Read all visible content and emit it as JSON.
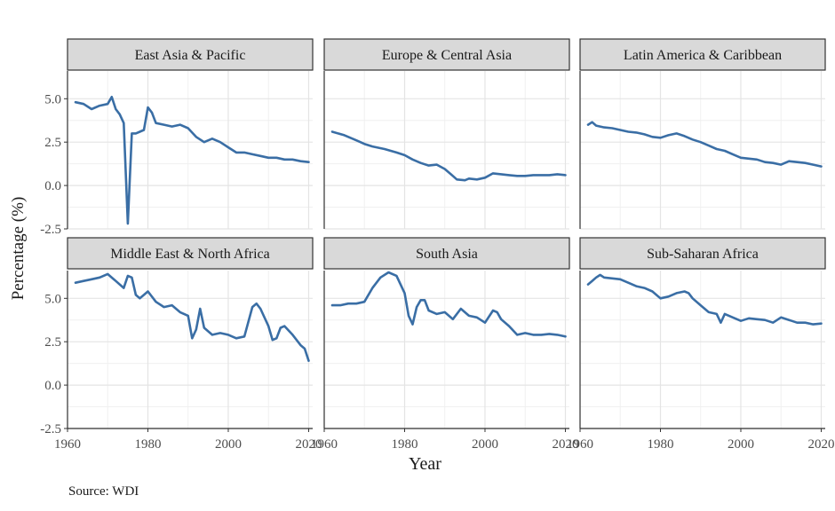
{
  "chart_data": {
    "type": "line",
    "facets": [
      "East Asia & Pacific",
      "Europe & Central Asia",
      "Latin America & Caribbean",
      "Middle East & North Africa",
      "South Asia",
      "Sub-Saharan Africa"
    ],
    "xlabel": "Year",
    "ylabel": "Percentage (%)",
    "caption": "Source: WDI",
    "xlim": [
      1960,
      2021
    ],
    "ylim": [
      -2.5,
      6.6
    ],
    "x_ticks": [
      "1960",
      "1980",
      "2000",
      "2020"
    ],
    "y_ticks": [
      "-2.5",
      "0.0",
      "2.5",
      "5.0"
    ],
    "grid": true,
    "line_color": "#3a6ea5",
    "strip_fill": "#d9d9d9",
    "series": [
      {
        "name": "East Asia & Pacific",
        "x": [
          1962,
          1964,
          1966,
          1968,
          1970,
          1971,
          1972,
          1973,
          1974,
          1975,
          1976,
          1977,
          1978,
          1979,
          1980,
          1981,
          1982,
          1984,
          1986,
          1988,
          1990,
          1992,
          1994,
          1996,
          1998,
          2000,
          2002,
          2004,
          2006,
          2008,
          2010,
          2012,
          2014,
          2016,
          2018,
          2020
        ],
        "y": [
          4.8,
          4.7,
          4.4,
          4.6,
          4.7,
          5.1,
          4.4,
          4.1,
          3.6,
          -2.2,
          3.0,
          3.0,
          3.1,
          3.2,
          4.5,
          4.2,
          3.6,
          3.5,
          3.4,
          3.5,
          3.3,
          2.8,
          2.5,
          2.7,
          2.5,
          2.2,
          1.9,
          1.9,
          1.8,
          1.7,
          1.6,
          1.6,
          1.5,
          1.5,
          1.4,
          1.35
        ]
      },
      {
        "name": "Europe & Central Asia",
        "x": [
          1962,
          1965,
          1968,
          1970,
          1972,
          1975,
          1978,
          1980,
          1982,
          1984,
          1986,
          1988,
          1990,
          1992,
          1993,
          1995,
          1996,
          1998,
          2000,
          2002,
          2004,
          2006,
          2008,
          2010,
          2012,
          2014,
          2016,
          2018,
          2020
        ],
        "y": [
          3.1,
          2.9,
          2.6,
          2.4,
          2.25,
          2.1,
          1.9,
          1.75,
          1.5,
          1.3,
          1.15,
          1.2,
          0.95,
          0.55,
          0.35,
          0.3,
          0.4,
          0.35,
          0.45,
          0.7,
          0.65,
          0.6,
          0.55,
          0.55,
          0.6,
          0.6,
          0.6,
          0.65,
          0.6
        ]
      },
      {
        "name": "Latin America & Caribbean",
        "x": [
          1962,
          1963,
          1964,
          1966,
          1968,
          1970,
          1972,
          1974,
          1976,
          1978,
          1980,
          1982,
          1984,
          1986,
          1988,
          1990,
          1992,
          1994,
          1996,
          1998,
          2000,
          2002,
          2004,
          2006,
          2008,
          2010,
          2012,
          2014,
          2016,
          2018,
          2020
        ],
        "y": [
          3.5,
          3.65,
          3.45,
          3.35,
          3.3,
          3.2,
          3.1,
          3.05,
          2.95,
          2.8,
          2.75,
          2.9,
          3.0,
          2.85,
          2.65,
          2.5,
          2.3,
          2.1,
          2.0,
          1.8,
          1.6,
          1.55,
          1.5,
          1.35,
          1.3,
          1.2,
          1.4,
          1.35,
          1.3,
          1.2,
          1.1
        ]
      },
      {
        "name": "Middle East & North Africa",
        "x": [
          1962,
          1964,
          1966,
          1968,
          1970,
          1972,
          1974,
          1975,
          1976,
          1977,
          1978,
          1979,
          1980,
          1982,
          1984,
          1986,
          1988,
          1990,
          1991,
          1992,
          1993,
          1994,
          1996,
          1998,
          2000,
          2002,
          2004,
          2006,
          2007,
          2008,
          2010,
          2011,
          2012,
          2013,
          2014,
          2016,
          2018,
          2019,
          2020
        ],
        "y": [
          5.9,
          6.0,
          6.1,
          6.2,
          6.4,
          6.0,
          5.6,
          6.3,
          6.2,
          5.2,
          5.0,
          5.2,
          5.4,
          4.8,
          4.5,
          4.6,
          4.2,
          4.0,
          2.7,
          3.2,
          4.4,
          3.3,
          2.9,
          3.0,
          2.9,
          2.7,
          2.8,
          4.5,
          4.7,
          4.4,
          3.4,
          2.6,
          2.7,
          3.3,
          3.4,
          2.9,
          2.3,
          2.1,
          1.4
        ]
      },
      {
        "name": "South Asia",
        "x": [
          1962,
          1964,
          1966,
          1968,
          1970,
          1972,
          1974,
          1976,
          1978,
          1980,
          1981,
          1982,
          1983,
          1984,
          1985,
          1986,
          1988,
          1990,
          1992,
          1994,
          1996,
          1998,
          2000,
          2002,
          2003,
          2004,
          2006,
          2008,
          2010,
          2012,
          2014,
          2016,
          2018,
          2020
        ],
        "y": [
          4.6,
          4.6,
          4.7,
          4.7,
          4.8,
          5.6,
          6.2,
          6.5,
          6.3,
          5.3,
          4.0,
          3.5,
          4.5,
          4.9,
          4.9,
          4.3,
          4.1,
          4.2,
          3.8,
          4.4,
          4.0,
          3.9,
          3.6,
          4.3,
          4.2,
          3.8,
          3.4,
          2.9,
          3.0,
          2.9,
          2.9,
          2.95,
          2.9,
          2.8
        ]
      },
      {
        "name": "Sub-Saharan Africa",
        "x": [
          1962,
          1963,
          1964,
          1965,
          1966,
          1968,
          1970,
          1972,
          1974,
          1976,
          1978,
          1980,
          1982,
          1984,
          1986,
          1987,
          1988,
          1990,
          1992,
          1994,
          1995,
          1996,
          1998,
          2000,
          2002,
          2004,
          2006,
          2008,
          2010,
          2012,
          2014,
          2016,
          2018,
          2020
        ],
        "y": [
          5.8,
          6.0,
          6.2,
          6.35,
          6.2,
          6.15,
          6.1,
          5.9,
          5.7,
          5.6,
          5.4,
          5.0,
          5.1,
          5.3,
          5.4,
          5.3,
          5.0,
          4.6,
          4.2,
          4.1,
          3.6,
          4.1,
          3.9,
          3.7,
          3.85,
          3.8,
          3.75,
          3.6,
          3.9,
          3.75,
          3.6,
          3.6,
          3.5,
          3.55
        ]
      }
    ]
  }
}
